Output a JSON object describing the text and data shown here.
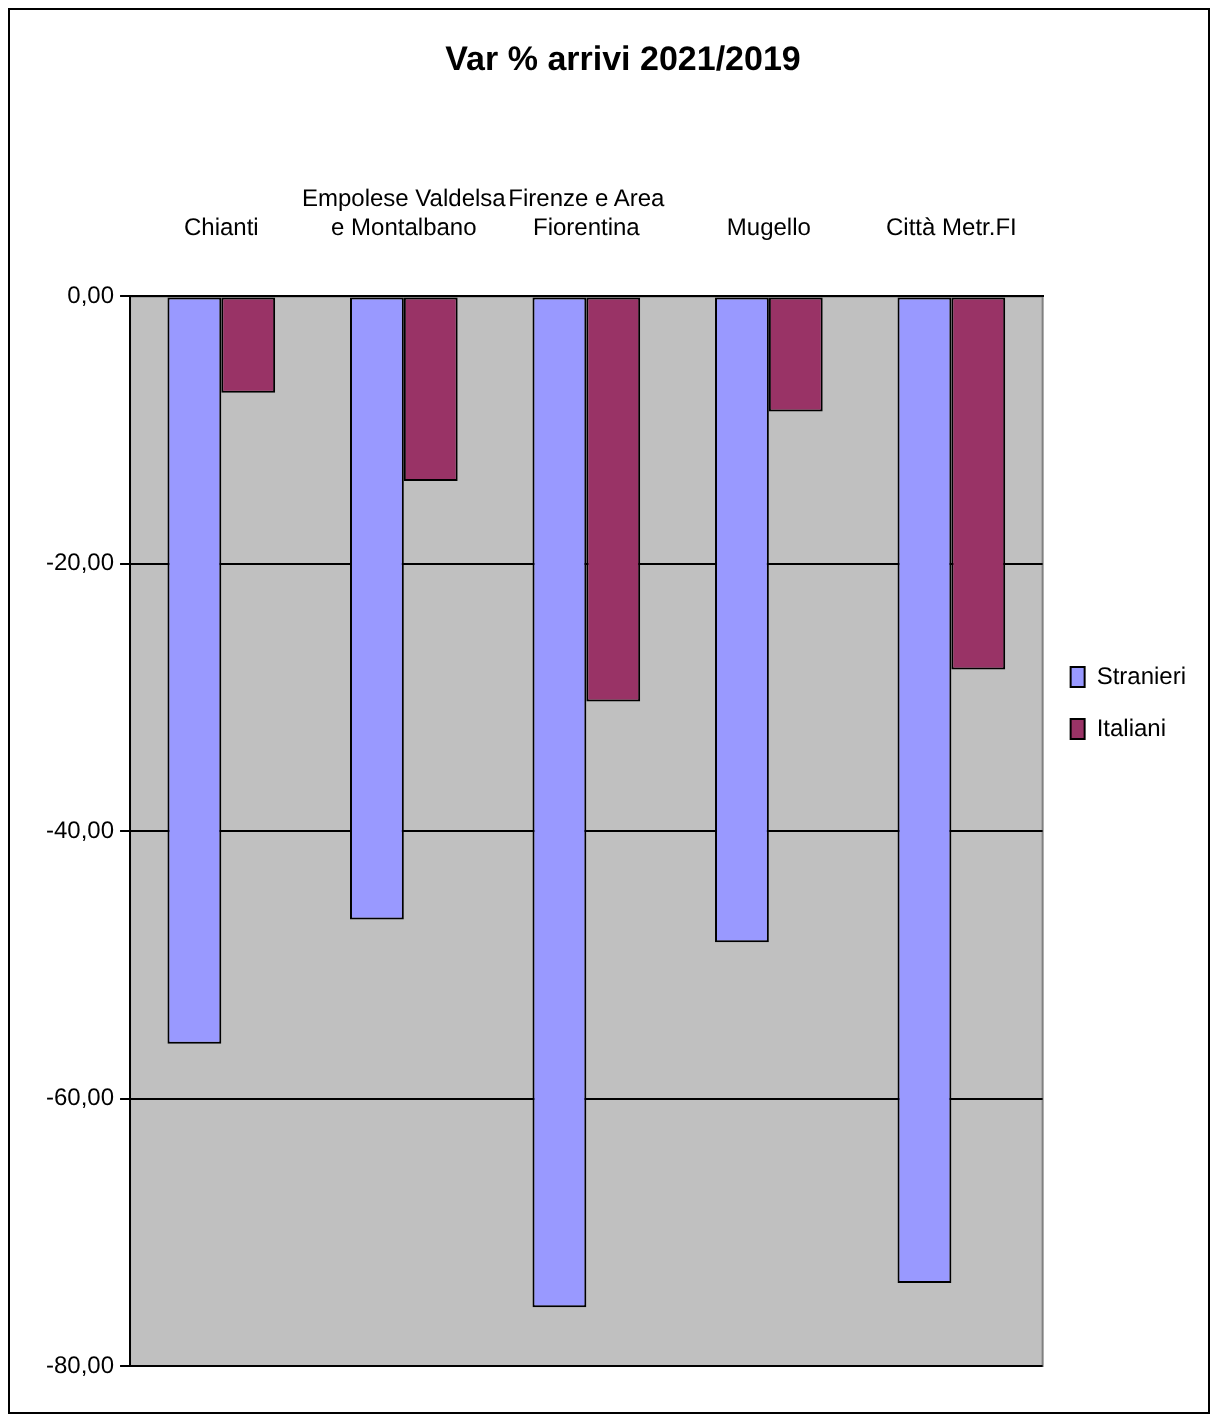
{
  "chart_data": {
    "type": "bar",
    "title": "Var % arrivi 2021/2019",
    "categories": [
      "Chianti",
      "Empolese Valdelsa e Montalbano",
      "Firenze e Area Fiorentina",
      "Mugello",
      "Città Metr.FI"
    ],
    "series": [
      {
        "name": "Stranieri",
        "color": "#9999ff",
        "values": [
          -55.9,
          -46.6,
          -75.6,
          -48.3,
          -73.8
        ]
      },
      {
        "name": "Italiani",
        "color": "#993366",
        "values": [
          -7.2,
          -13.8,
          -30.3,
          -8.6,
          -27.9
        ]
      }
    ],
    "ylim": [
      -80,
      0
    ],
    "yticks": [
      {
        "value": 0,
        "label": "0,00"
      },
      {
        "value": -20,
        "label": "-20,00"
      },
      {
        "value": -40,
        "label": "-40,00"
      },
      {
        "value": -60,
        "label": "-60,00"
      },
      {
        "value": -80,
        "label": "-80,00"
      }
    ],
    "grid": "y",
    "legend": "right"
  }
}
